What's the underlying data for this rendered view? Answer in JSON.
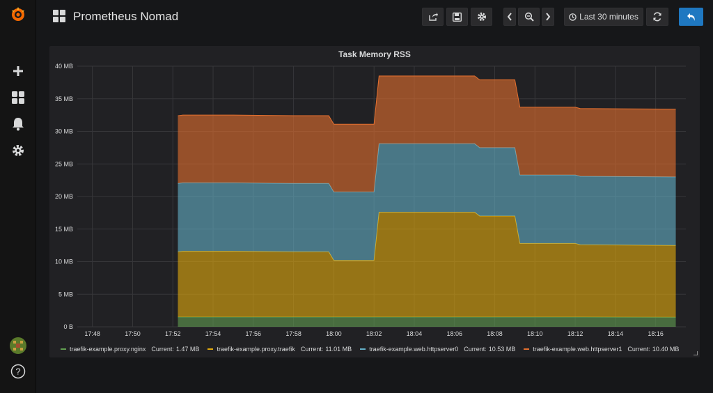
{
  "app": {
    "logo_icon": "grafana-logo-icon"
  },
  "sidebar": {
    "items": [
      {
        "name": "create",
        "icon": "plus-icon"
      },
      {
        "name": "dashboards",
        "icon": "grid-icon"
      },
      {
        "name": "alerting",
        "icon": "bell-icon"
      },
      {
        "name": "configuration",
        "icon": "gear-icon"
      }
    ],
    "bottom": [
      {
        "name": "profile",
        "icon": "avatar-icon"
      },
      {
        "name": "help",
        "icon": "help-icon",
        "label": "?"
      }
    ]
  },
  "header": {
    "title": "Prometheus Nomad",
    "time_range_label": "Last 30 minutes",
    "buttons": [
      "share",
      "save",
      "settings",
      "time-back",
      "zoom-out",
      "time-forward",
      "refresh",
      "back"
    ]
  },
  "panel": {
    "title": "Task Memory RSS",
    "legend": [
      {
        "name": "traefik-example.proxy.nginx",
        "current_label": "Current:",
        "current": "1.47 MB",
        "color": "#629e51"
      },
      {
        "name": "traefik-example.proxy.traefik",
        "current_label": "Current:",
        "current": "11.01 MB",
        "color": "#e5ac0e"
      },
      {
        "name": "traefik-example.web.httpserver0",
        "current_label": "Current:",
        "current": "10.53 MB",
        "color": "#64b0c8"
      },
      {
        "name": "traefik-example.web.httpserver1",
        "current_label": "Current:",
        "current": "10.40 MB",
        "color": "#e5702f"
      }
    ]
  },
  "chart_data": {
    "type": "area",
    "title": "Task Memory RSS",
    "stacked": true,
    "x_ticks": [
      "17:48",
      "17:50",
      "17:52",
      "17:54",
      "17:56",
      "17:58",
      "18:00",
      "18:02",
      "18:04",
      "18:06",
      "18:08",
      "18:10",
      "18:12",
      "18:14",
      "18:16"
    ],
    "y_ticks": [
      "0 B",
      "5 MB",
      "10 MB",
      "15 MB",
      "20 MB",
      "25 MB",
      "30 MB",
      "35 MB",
      "40 MB"
    ],
    "ylim": [
      0,
      40
    ],
    "y_unit": "MB",
    "x": [
      "17:52:15",
      "17:52:30",
      "17:55",
      "17:58",
      "17:59:45",
      "18:00",
      "18:02",
      "18:02:15",
      "18:04",
      "18:07",
      "18:07:15",
      "18:09",
      "18:09:15",
      "18:12",
      "18:12:15",
      "18:17"
    ],
    "series": [
      {
        "name": "traefik-example.proxy.nginx",
        "color": "#629e51",
        "values": [
          1.5,
          1.5,
          1.5,
          1.5,
          1.5,
          1.5,
          1.5,
          1.5,
          1.5,
          1.5,
          1.5,
          1.5,
          1.5,
          1.5,
          1.5,
          1.47
        ]
      },
      {
        "name": "traefik-example.proxy.traefik",
        "color": "#e5ac0e",
        "values": [
          10.0,
          10.1,
          10.1,
          10.0,
          10.0,
          8.7,
          8.7,
          16.1,
          16.1,
          16.1,
          15.5,
          15.5,
          11.3,
          11.3,
          11.1,
          11.01
        ]
      },
      {
        "name": "traefik-example.web.httpserver0",
        "color": "#64b0c8",
        "values": [
          10.5,
          10.5,
          10.5,
          10.5,
          10.5,
          10.5,
          10.5,
          10.5,
          10.5,
          10.5,
          10.5,
          10.5,
          10.5,
          10.5,
          10.5,
          10.53
        ]
      },
      {
        "name": "traefik-example.web.httpserver1",
        "color": "#e5702f",
        "values": [
          10.4,
          10.4,
          10.4,
          10.4,
          10.4,
          10.4,
          10.4,
          10.4,
          10.4,
          10.4,
          10.4,
          10.4,
          10.4,
          10.4,
          10.4,
          10.4
        ]
      }
    ],
    "grid": true,
    "legend_position": "bottom"
  }
}
